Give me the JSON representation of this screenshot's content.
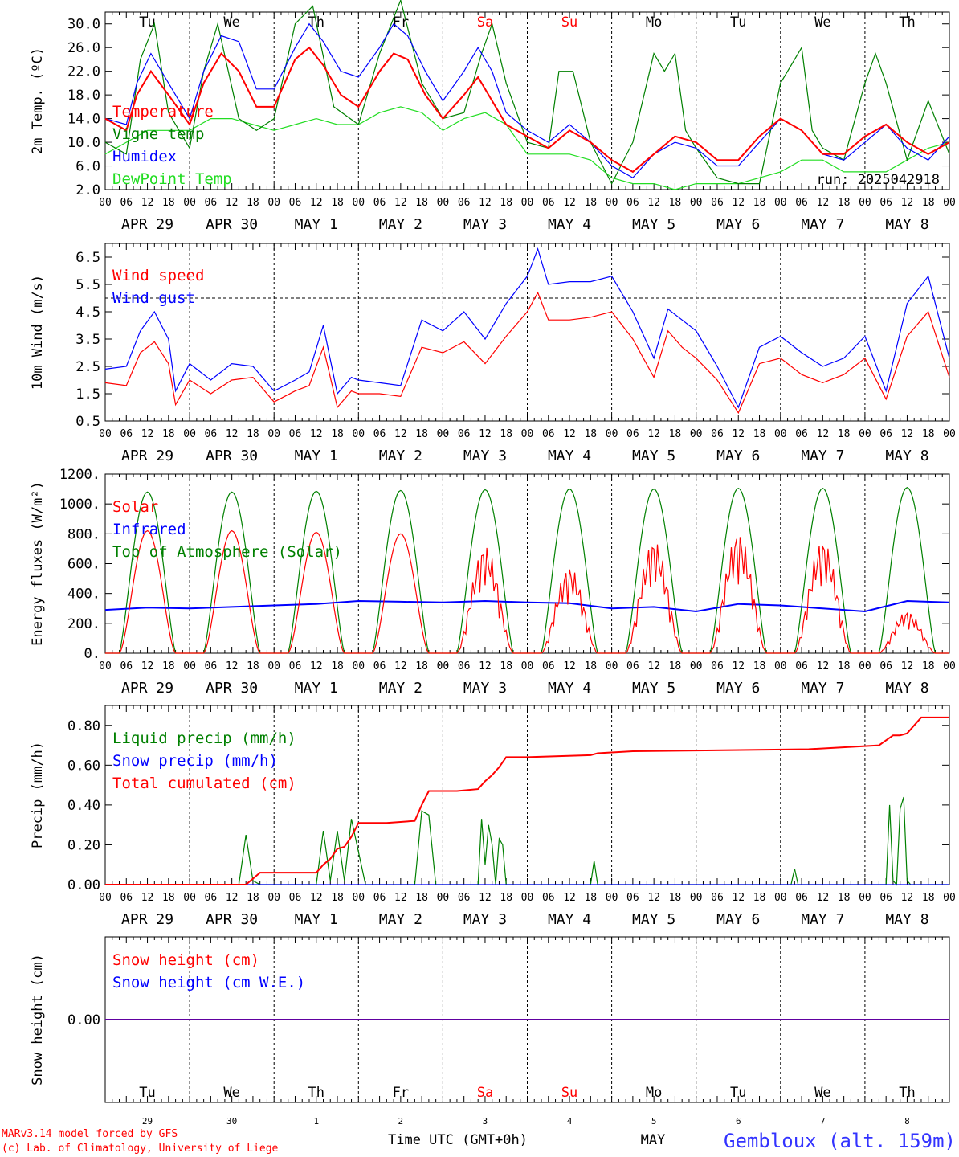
{
  "meta": {
    "run_label": "run: 2025042918",
    "footer_model": "MARv3.14 model forced by GFS",
    "footer_lab": "(c) Lab. of Climatology, University of Liege",
    "footer_axis": "Time UTC (GMT+0h)",
    "footer_month": "MAY",
    "station": "Gembloux (alt. 159m)",
    "colors": {
      "red": "#ff0000",
      "blue": "#0000ff",
      "green": "#008000",
      "lightgreen": "#22dd22",
      "black": "#000000"
    }
  },
  "hours": [
    "00",
    "06",
    "12",
    "18"
  ],
  "final_hour": "00",
  "days": [
    {
      "weekday": "Tu",
      "date": "APR 29",
      "num": "29",
      "weekend": false
    },
    {
      "weekday": "We",
      "date": "APR 30",
      "num": "30",
      "weekend": false
    },
    {
      "weekday": "Th",
      "date": "MAY  1",
      "num": "1",
      "weekend": false
    },
    {
      "weekday": "Fr",
      "date": "MAY  2",
      "num": "2",
      "weekend": false
    },
    {
      "weekday": "Sa",
      "date": "MAY  3",
      "num": "3",
      "weekend": true
    },
    {
      "weekday": "Su",
      "date": "MAY  4",
      "num": "4",
      "weekend": true
    },
    {
      "weekday": "Mo",
      "date": "MAY  5",
      "num": "5",
      "weekend": false
    },
    {
      "weekday": "Tu",
      "date": "MAY  6",
      "num": "6",
      "weekend": false
    },
    {
      "weekday": "We",
      "date": "MAY  7",
      "num": "7",
      "weekend": false
    },
    {
      "weekday": "Th",
      "date": "MAY  8",
      "num": "8",
      "weekend": false
    }
  ],
  "chart_data": [
    {
      "id": "temp",
      "type": "line",
      "ylabel": "2m Temp. (ºC)",
      "ylim": [
        2,
        32
      ],
      "yticks": [
        2,
        6,
        10,
        14,
        18,
        22,
        26,
        30
      ],
      "ytick_labels": [
        "2.0",
        "6.0",
        "10.0",
        "14.0",
        "18.0",
        "22.0",
        "26.0",
        "30.0"
      ],
      "show_weekdays": true,
      "series": [
        {
          "name": "DewPoint Temp",
          "color": "#22dd22",
          "x": [
            0,
            6,
            12,
            18,
            24,
            30,
            36,
            42,
            48,
            54,
            60,
            66,
            72,
            78,
            84,
            90,
            96,
            102,
            108,
            114,
            120,
            126,
            132,
            138,
            144,
            150,
            156,
            162,
            168,
            174,
            180,
            186,
            192,
            198,
            204,
            210,
            216,
            222,
            228,
            234,
            240
          ],
          "y": [
            8,
            10,
            12,
            12,
            12,
            14,
            14,
            13,
            12,
            13,
            14,
            13,
            13,
            15,
            16,
            15,
            12,
            14,
            15,
            13,
            8,
            8,
            8,
            7,
            4,
            3,
            3,
            2,
            3,
            3,
            3,
            4,
            5,
            7,
            7,
            5,
            5,
            5,
            7,
            9,
            10
          ]
        },
        {
          "name": "Vigne temp",
          "color": "#008000",
          "x": [
            0,
            6,
            10,
            14,
            18,
            24,
            28,
            32,
            38,
            43,
            48,
            54,
            59,
            65,
            72,
            78,
            84,
            90,
            96,
            102,
            107,
            110,
            114,
            120,
            126,
            129,
            133,
            138,
            144,
            150,
            156,
            159,
            162,
            165,
            168,
            174,
            180,
            186,
            192,
            198,
            201,
            204,
            210,
            216,
            219,
            222,
            228,
            234,
            240
          ],
          "y": [
            10,
            8,
            24,
            30,
            15,
            9,
            22,
            30,
            14,
            12,
            14,
            30,
            33,
            16,
            13,
            25,
            34,
            20,
            14,
            15,
            25,
            30,
            20,
            10,
            9,
            22,
            22,
            10,
            3,
            10,
            25,
            22,
            25,
            12,
            9,
            4,
            3,
            3,
            20,
            26,
            12,
            9,
            7,
            20,
            25,
            20,
            7,
            17,
            8
          ]
        },
        {
          "name": "Humidex",
          "color": "#0000ff",
          "x": [
            0,
            6,
            9,
            13,
            18,
            24,
            28,
            33,
            38,
            43,
            48,
            54,
            58,
            62,
            67,
            72,
            78,
            82,
            86,
            91,
            96,
            102,
            106,
            110,
            114,
            120,
            126,
            132,
            138,
            144,
            150,
            156,
            162,
            168,
            174,
            180,
            186,
            192,
            198,
            204,
            210,
            216,
            222,
            228,
            234,
            240
          ],
          "y": [
            14,
            13,
            20,
            25,
            20,
            14,
            22,
            28,
            27,
            19,
            19,
            26,
            30,
            27,
            22,
            21,
            26,
            30,
            28,
            22,
            17,
            22,
            26,
            22,
            15,
            12,
            10,
            13,
            10,
            6,
            4,
            8,
            10,
            9,
            6,
            6,
            10,
            14,
            12,
            8,
            7,
            10,
            13,
            9,
            7,
            11
          ]
        },
        {
          "name": "Temperature",
          "color": "#ff0000",
          "x": [
            0,
            6,
            9,
            13,
            18,
            24,
            28,
            33,
            38,
            43,
            48,
            54,
            58,
            62,
            67,
            72,
            78,
            82,
            86,
            91,
            96,
            102,
            106,
            110,
            114,
            120,
            126,
            132,
            138,
            144,
            150,
            156,
            162,
            168,
            174,
            180,
            186,
            192,
            198,
            204,
            210,
            216,
            222,
            228,
            234,
            240
          ],
          "y": [
            14,
            12,
            18,
            22,
            18,
            13,
            20,
            25,
            22,
            16,
            16,
            24,
            26,
            23,
            18,
            16,
            22,
            25,
            24,
            18,
            14,
            18,
            21,
            17,
            13,
            11,
            9,
            12,
            10,
            7,
            5,
            8,
            11,
            10,
            7,
            7,
            11,
            14,
            12,
            8,
            8,
            11,
            13,
            10,
            8,
            10
          ]
        }
      ]
    },
    {
      "id": "wind",
      "type": "line",
      "ylabel": "10m Wind (m/s)",
      "ylim": [
        0.5,
        7
      ],
      "yticks": [
        0.5,
        1.5,
        2.5,
        3.5,
        4.5,
        5.5,
        6.5
      ],
      "ytick_labels": [
        "0.5",
        "1.5",
        "2.5",
        "3.5",
        "4.5",
        "5.5",
        "6.5"
      ],
      "hline": 5,
      "series": [
        {
          "name": "Wind gust",
          "color": "#0000ff",
          "x": [
            0,
            6,
            10,
            14,
            18,
            20,
            24,
            30,
            36,
            42,
            48,
            54,
            58,
            62,
            66,
            70,
            72,
            78,
            84,
            90,
            96,
            102,
            108,
            114,
            120,
            123,
            126,
            132,
            138,
            144,
            150,
            156,
            160,
            164,
            168,
            174,
            180,
            186,
            192,
            198,
            204,
            210,
            216,
            222,
            228,
            234,
            240
          ],
          "y": [
            2.4,
            2.5,
            3.8,
            4.5,
            3.5,
            1.6,
            2.6,
            2.0,
            2.6,
            2.5,
            1.6,
            2.0,
            2.3,
            4,
            1.5,
            2.1,
            2,
            1.9,
            1.8,
            4.2,
            3.8,
            4.5,
            3.5,
            4.8,
            5.8,
            6.8,
            5.5,
            5.6,
            5.6,
            5.8,
            4.5,
            2.8,
            4.6,
            4.2,
            3.8,
            2.5,
            1.0,
            3.2,
            3.6,
            3.0,
            2.5,
            2.8,
            3.6,
            1.6,
            4.8,
            5.8,
            2.8
          ]
        },
        {
          "name": "Wind speed",
          "color": "#ff0000",
          "x": [
            0,
            6,
            10,
            14,
            18,
            20,
            24,
            30,
            36,
            42,
            48,
            54,
            58,
            62,
            66,
            70,
            72,
            78,
            84,
            90,
            96,
            102,
            108,
            114,
            120,
            123,
            126,
            132,
            138,
            144,
            150,
            156,
            160,
            164,
            168,
            174,
            180,
            186,
            192,
            198,
            204,
            210,
            216,
            222,
            228,
            234,
            240
          ],
          "y": [
            1.9,
            1.8,
            3.0,
            3.4,
            2.6,
            1.1,
            2.0,
            1.5,
            2.0,
            2.1,
            1.2,
            1.6,
            1.8,
            3.2,
            1.0,
            1.6,
            1.5,
            1.5,
            1.4,
            3.2,
            3.0,
            3.4,
            2.6,
            3.6,
            4.5,
            5.2,
            4.2,
            4.2,
            4.3,
            4.5,
            3.5,
            2.1,
            3.8,
            3.2,
            2.8,
            2.0,
            0.8,
            2.6,
            2.8,
            2.2,
            1.9,
            2.2,
            2.8,
            1.3,
            3.6,
            4.5,
            2.1
          ]
        }
      ]
    },
    {
      "id": "flux",
      "type": "line",
      "ylabel": "Energy fluxes (W/m²)",
      "ylim": [
        0,
        1200
      ],
      "yticks": [
        0,
        200,
        400,
        600,
        800,
        1000,
        1200
      ],
      "ytick_labels": [
        "0.",
        "200.",
        "400.",
        "600.",
        "800.",
        "1000.",
        "1200."
      ],
      "series": [
        {
          "name": "Top of Atmosphere (Solar)",
          "color": "#008000",
          "peaks": [
            1080,
            1080,
            1085,
            1090,
            1095,
            1100,
            1100,
            1105,
            1105,
            1110
          ],
          "daylight": [
            4,
            20
          ]
        },
        {
          "name": "Infrared",
          "color": "#0000ff",
          "x": [
            0,
            12,
            24,
            36,
            48,
            60,
            72,
            84,
            96,
            108,
            120,
            132,
            144,
            156,
            168,
            180,
            192,
            204,
            216,
            228,
            240
          ],
          "y": [
            290,
            305,
            300,
            310,
            320,
            330,
            350,
            345,
            340,
            350,
            340,
            335,
            300,
            310,
            280,
            330,
            320,
            300,
            280,
            350,
            340
          ]
        },
        {
          "name": "Solar",
          "color": "#ff0000",
          "peaks": [
            820,
            820,
            810,
            800,
            720,
            580,
            760,
            810,
            760,
            280
          ],
          "daylight": [
            4,
            20
          ]
        }
      ]
    },
    {
      "id": "precip",
      "type": "line",
      "ylabel": "Precip (mm/h)",
      "ylim": [
        0,
        0.9
      ],
      "yticks": [
        0,
        0.2,
        0.4,
        0.6,
        0.8
      ],
      "ytick_labels": [
        "0.00",
        "0.20",
        "0.40",
        "0.60",
        "0.80"
      ],
      "series": [
        {
          "name": "Liquid precip (mm/h)",
          "color": "#008000",
          "x": [
            0,
            38,
            40,
            42,
            44,
            60,
            62,
            64,
            66,
            68,
            70,
            74,
            76,
            78,
            80,
            88,
            90,
            92,
            94,
            96,
            106,
            107,
            108,
            109,
            110,
            111,
            112,
            113,
            114,
            116,
            118,
            120,
            138,
            139,
            140,
            195,
            196,
            197,
            222,
            223,
            224,
            225,
            226,
            227,
            228,
            229,
            240
          ],
          "y": [
            0,
            0,
            0.25,
            0.02,
            0,
            0,
            0.27,
            0.02,
            0.27,
            0.02,
            0.33,
            0,
            0,
            0,
            0,
            0,
            0.37,
            0.35,
            0,
            0,
            0,
            0.33,
            0.1,
            0.3,
            0.2,
            0,
            0.23,
            0.2,
            0,
            0,
            0,
            0,
            0,
            0.12,
            0,
            0,
            0.08,
            0,
            0,
            0.4,
            0.02,
            0,
            0.38,
            0.44,
            0.02,
            0,
            0
          ]
        },
        {
          "name": "Snow precip (mm/h)",
          "color": "#0000ff",
          "x": [
            0,
            240
          ],
          "y": [
            0,
            0
          ]
        },
        {
          "name": "Total cumulated (cm)",
          "color": "#ff0000",
          "x": [
            0,
            40,
            44,
            60,
            62,
            64,
            66,
            68,
            70,
            72,
            80,
            88,
            90,
            92,
            96,
            100,
            106,
            108,
            110,
            112,
            114,
            120,
            138,
            140,
            150,
            200,
            220,
            224,
            226,
            228,
            232,
            240
          ],
          "y": [
            0,
            0,
            0.06,
            0.06,
            0.1,
            0.13,
            0.18,
            0.19,
            0.24,
            0.31,
            0.31,
            0.32,
            0.4,
            0.47,
            0.47,
            0.47,
            0.48,
            0.52,
            0.55,
            0.59,
            0.64,
            0.64,
            0.65,
            0.66,
            0.67,
            0.68,
            0.7,
            0.75,
            0.75,
            0.76,
            0.84,
            0.84
          ]
        }
      ]
    },
    {
      "id": "snow",
      "type": "line",
      "ylabel": "Snow height (cm)",
      "ylim": [
        -1,
        1
      ],
      "yticks": [
        0
      ],
      "ytick_labels": [
        "0.00"
      ],
      "series": [
        {
          "name": "Snow height (cm)",
          "color": "#ff0000",
          "x": [
            0,
            240
          ],
          "y": [
            0,
            0
          ]
        },
        {
          "name": "Snow height (cm W.E.)",
          "color": "#0000ff",
          "x": [
            0,
            240
          ],
          "y": [
            0,
            0
          ]
        }
      ]
    }
  ]
}
